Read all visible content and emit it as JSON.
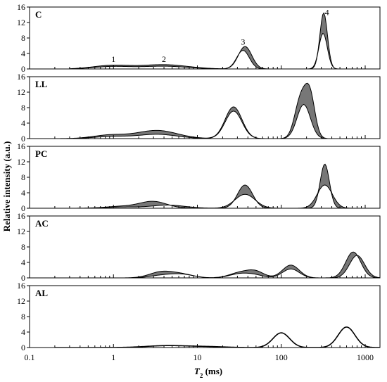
{
  "chart_data": {
    "type": "line",
    "x_scale": "log",
    "xlim": [
      0.1,
      1500
    ],
    "ylim": [
      0,
      16
    ],
    "x_ticks": [
      0.1,
      1,
      10,
      100,
      1000
    ],
    "x_tick_labels": [
      "0.1",
      "1",
      "10",
      "100",
      "1000"
    ],
    "y_ticks": [
      0,
      4,
      8,
      12,
      16
    ],
    "y_tick_labels": [
      "0",
      "4",
      "8",
      "12",
      "16"
    ],
    "xlabel_italic": "T",
    "xlabel_sub": "2",
    "xlabel_rest": " (ms)",
    "ylabel": "Relative intensity (a.u.)",
    "band_color": "#777777",
    "panels": [
      {
        "label": "C",
        "style": "band",
        "x_start": 0.3,
        "peak_labels": [
          {
            "text": "1",
            "x": 1.0,
            "y": 1.8
          },
          {
            "text": "2",
            "x": 4.0,
            "y": 1.8
          },
          {
            "text": "3",
            "x": 35,
            "y": 6.3
          },
          {
            "text": "4",
            "x": 350,
            "y": 13.9
          }
        ],
        "upper": [
          {
            "center": 0.95,
            "height": 0.9,
            "width": 0.22
          },
          {
            "center": 4.0,
            "height": 1.1,
            "width": 0.28
          },
          {
            "center": 37,
            "height": 5.8,
            "width": 0.08
          },
          {
            "center": 320,
            "height": 14.5,
            "width": 0.045
          }
        ],
        "lower": [
          {
            "center": 0.95,
            "height": 0.6,
            "width": 0.22
          },
          {
            "center": 4.0,
            "height": 0.7,
            "width": 0.28
          },
          {
            "center": 35,
            "height": 4.8,
            "width": 0.075
          },
          {
            "center": 315,
            "height": 9.2,
            "width": 0.05
          }
        ]
      },
      {
        "label": "LL",
        "style": "band",
        "x_start": 0.2,
        "peak_labels": [],
        "upper": [
          {
            "center": 0.9,
            "height": 0.9,
            "width": 0.2
          },
          {
            "center": 3.3,
            "height": 2.1,
            "width": 0.24
          },
          {
            "center": 27,
            "height": 8.2,
            "width": 0.1
          },
          {
            "center": 170,
            "height": 10.0,
            "width": 0.07
          },
          {
            "center": 220,
            "height": 10.5,
            "width": 0.06
          }
        ],
        "lower": [
          {
            "center": 0.9,
            "height": 0.5,
            "width": 0.2
          },
          {
            "center": 3.3,
            "height": 1.1,
            "width": 0.24
          },
          {
            "center": 27,
            "height": 7.1,
            "width": 0.1
          },
          {
            "center": 185,
            "height": 8.8,
            "width": 0.08
          }
        ]
      },
      {
        "label": "PC",
        "style": "band",
        "x_start": 0.3,
        "peak_labels": [],
        "upper": [
          {
            "center": 1.3,
            "height": 0.5,
            "width": 0.2
          },
          {
            "center": 3.0,
            "height": 1.7,
            "width": 0.16
          },
          {
            "center": 37,
            "height": 6.0,
            "width": 0.09
          },
          {
            "center": 330,
            "height": 11.4,
            "width": 0.055
          }
        ],
        "lower": [
          {
            "center": 1.3,
            "height": 0.3,
            "width": 0.2
          },
          {
            "center": 4.5,
            "height": 0.8,
            "width": 0.2
          },
          {
            "center": 37,
            "height": 3.6,
            "width": 0.12
          },
          {
            "center": 330,
            "height": 6.0,
            "width": 0.09
          }
        ]
      },
      {
        "label": "AC",
        "style": "band",
        "x_start": 0.3,
        "peak_labels": [],
        "upper": [
          {
            "center": 3.7,
            "height": 1.5,
            "width": 0.14
          },
          {
            "center": 6.5,
            "height": 0.9,
            "width": 0.14
          },
          {
            "center": 33,
            "height": 1.4,
            "width": 0.13
          },
          {
            "center": 50,
            "height": 1.4,
            "width": 0.1
          },
          {
            "center": 130,
            "height": 3.3,
            "width": 0.1
          },
          {
            "center": 720,
            "height": 6.7,
            "width": 0.09
          }
        ],
        "lower": [
          {
            "center": 3.7,
            "height": 0.6,
            "width": 0.14
          },
          {
            "center": 6.5,
            "height": 0.9,
            "width": 0.14
          },
          {
            "center": 33,
            "height": 1.1,
            "width": 0.13
          },
          {
            "center": 50,
            "height": 0.5,
            "width": 0.1
          },
          {
            "center": 130,
            "height": 2.3,
            "width": 0.1
          },
          {
            "center": 800,
            "height": 5.8,
            "width": 0.09
          }
        ]
      },
      {
        "label": "AL",
        "style": "line",
        "x_start": 0.2,
        "peak_labels": [],
        "peaks": [
          {
            "center": 4.5,
            "height": 0.5,
            "width": 0.25
          },
          {
            "center": 14,
            "height": 0.2,
            "width": 0.2
          },
          {
            "center": 100,
            "height": 3.8,
            "width": 0.1
          },
          {
            "center": 600,
            "height": 5.3,
            "width": 0.1
          }
        ]
      }
    ]
  }
}
